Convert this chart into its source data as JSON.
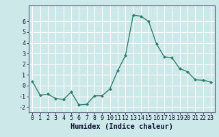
{
  "x": [
    0,
    1,
    2,
    3,
    4,
    5,
    6,
    7,
    8,
    9,
    10,
    11,
    12,
    13,
    14,
    15,
    16,
    17,
    18,
    19,
    20,
    21,
    22,
    23
  ],
  "y": [
    0.4,
    -0.9,
    -0.8,
    -1.2,
    -1.3,
    -0.6,
    -1.8,
    -1.75,
    -0.95,
    -0.95,
    -0.3,
    1.4,
    2.8,
    6.6,
    6.5,
    6.0,
    3.9,
    2.7,
    2.6,
    1.6,
    1.3,
    0.55,
    0.5,
    0.35
  ],
  "xlabel": "Humidex (Indice chaleur)",
  "xlim": [
    -0.5,
    23.5
  ],
  "ylim": [
    -2.5,
    7.5
  ],
  "yticks": [
    -2,
    -1,
    0,
    1,
    2,
    3,
    4,
    5,
    6
  ],
  "xticks": [
    0,
    1,
    2,
    3,
    4,
    5,
    6,
    7,
    8,
    9,
    10,
    11,
    12,
    13,
    14,
    15,
    16,
    17,
    18,
    19,
    20,
    21,
    22,
    23
  ],
  "line_color": "#2e7d6e",
  "marker": "D",
  "marker_size": 2.0,
  "bg_color": "#cce8e8",
  "grid_color": "#ffffff",
  "xlabel_fontsize": 7.5,
  "tick_fontsize": 6.0,
  "linewidth": 1.0
}
